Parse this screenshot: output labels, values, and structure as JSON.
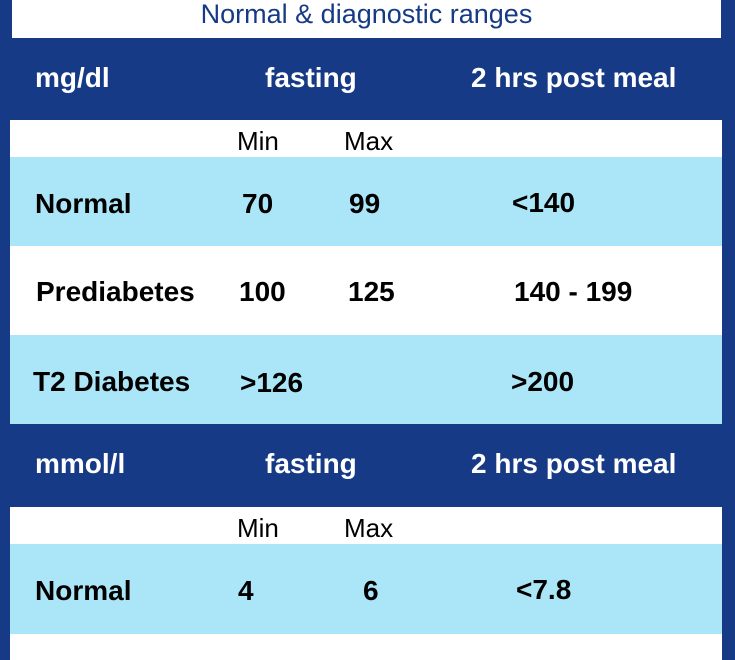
{
  "title": "Normal & diagnostic ranges",
  "sections": [
    {
      "unit": "mg/dl",
      "col_fasting": "fasting",
      "col_post": "2 hrs post meal",
      "min_label": "Min",
      "max_label": "Max",
      "rows": [
        {
          "label": "Normal",
          "min": "70",
          "max": "99",
          "post": "<140"
        },
        {
          "label": "Prediabetes",
          "min": "100",
          "max": "125",
          "post": "140 - 199"
        },
        {
          "label": "T2 Diabetes",
          "min": ">126",
          "max": "",
          "post": ">200"
        }
      ]
    },
    {
      "unit": "mmol/l",
      "col_fasting": "fasting",
      "col_post": "2 hrs post meal",
      "min_label": "Min",
      "max_label": "Max",
      "rows": [
        {
          "label": "Normal",
          "min": "4",
          "max": "6",
          "post": "<7.8"
        }
      ]
    }
  ],
  "colors": {
    "frame_blue": "#163a85",
    "row_cyan": "#abe6f8",
    "row_white": "#ffffff"
  }
}
